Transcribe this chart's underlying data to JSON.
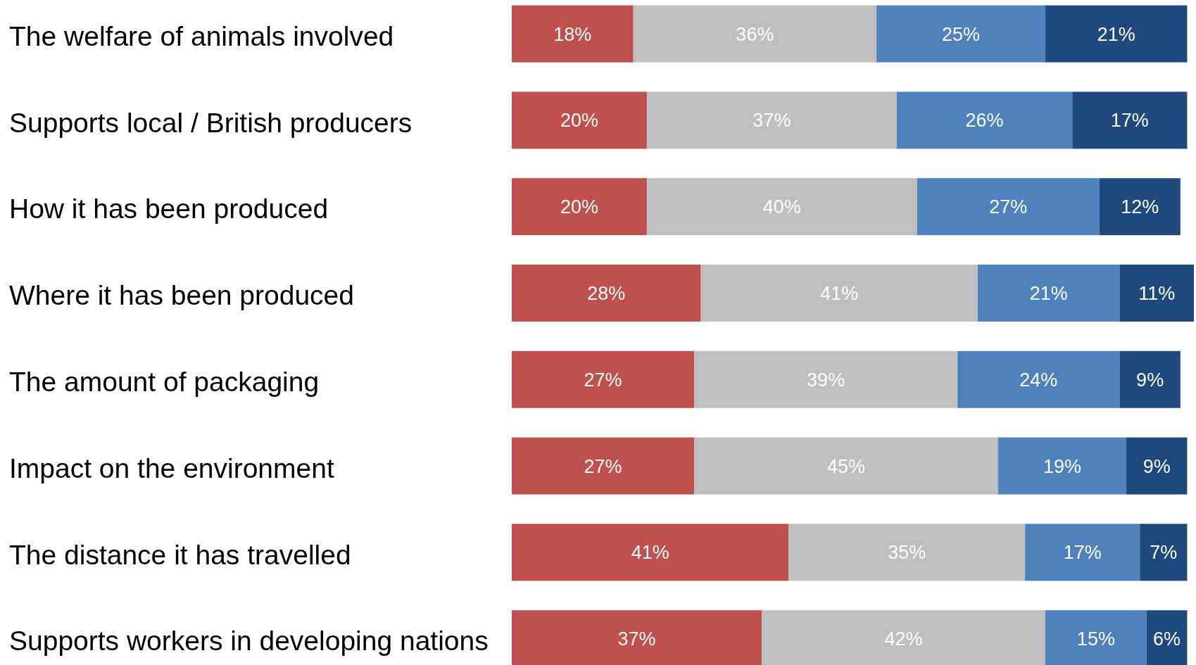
{
  "chart_data": {
    "type": "bar",
    "orientation": "horizontal",
    "stacked": true,
    "tick_labels": "y",
    "categories": [
      "The welfare of animals involved",
      "Supports local / British producers",
      "How it has been produced",
      "Where it has been produced",
      "The amount of packaging",
      "Impact on the environment",
      "The distance it has travelled",
      "Supports workers in developing nations"
    ],
    "series": [
      {
        "color": "#c0504d",
        "values": [
          18,
          20,
          20,
          28,
          27,
          27,
          41,
          37
        ],
        "value_labels": [
          "18%",
          "20%",
          "20%",
          "28%",
          "27%",
          "27%",
          "41%",
          "37%"
        ]
      },
      {
        "color": "#bfbfbf",
        "values": [
          36,
          37,
          40,
          41,
          39,
          45,
          35,
          42
        ],
        "value_labels": [
          "36%",
          "37%",
          "40%",
          "41%",
          "39%",
          "45%",
          "35%",
          "42%"
        ]
      },
      {
        "color": "#4f81bd",
        "values": [
          25,
          26,
          27,
          21,
          24,
          19,
          17,
          15
        ],
        "value_labels": [
          "25%",
          "26%",
          "27%",
          "21%",
          "24%",
          "19%",
          "17%",
          "15%"
        ]
      },
      {
        "color": "#1f497d",
        "values": [
          21,
          17,
          12,
          11,
          9,
          9,
          7,
          6
        ],
        "value_labels": [
          "21%",
          "17%",
          "12%",
          "11%",
          "9%",
          "9%",
          "7%",
          "6%"
        ]
      }
    ]
  }
}
